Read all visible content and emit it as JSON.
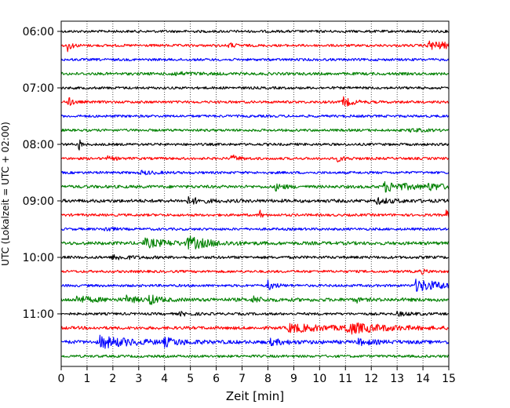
{
  "chart_data": {
    "type": "line",
    "chart_kind": "helicorder (seismogram drum plot)",
    "xlabel": "Zeit  [min]",
    "ylabel": "UTC (Lokalzeit = UTC + 02:00)",
    "xlim": [
      0,
      15
    ],
    "x_ticks": [
      0,
      1,
      2,
      3,
      4,
      5,
      6,
      7,
      8,
      9,
      10,
      11,
      12,
      13,
      14,
      15
    ],
    "x_tick_labels": [
      "0",
      "1",
      "2",
      "3",
      "4",
      "5",
      "6",
      "7",
      "8",
      "9",
      "10",
      "11",
      "12",
      "13",
      "14",
      "15"
    ],
    "y_tick_labels": [
      "06:00",
      "07:00",
      "08:00",
      "09:00",
      "10:00",
      "11:00"
    ],
    "y_tick_traces": [
      0,
      4,
      8,
      12,
      16,
      20
    ],
    "grid": "vertical dotted lines at each minute",
    "trace_minutes": 15,
    "trace_colors": [
      "#000000",
      "#ff0000",
      "#0000ff",
      "#008000"
    ],
    "traces": [
      {
        "start": "06:00",
        "color": "#000000",
        "noise": 1.0,
        "events": []
      },
      {
        "start": "06:15",
        "color": "#ff0000",
        "noise": 1.0,
        "events": [
          {
            "t": 0.25,
            "amp": 7,
            "dur": 0.15
          },
          {
            "t": 6.5,
            "amp": 3,
            "dur": 0.2
          },
          {
            "t": 14.2,
            "amp": 5,
            "dur": 1.2
          }
        ]
      },
      {
        "start": "06:30",
        "color": "#0000ff",
        "noise": 1.0,
        "events": []
      },
      {
        "start": "06:45",
        "color": "#008000",
        "noise": 1.1,
        "events": [
          {
            "t": 4.2,
            "amp": 2,
            "dur": 0.8
          }
        ]
      },
      {
        "start": "07:00",
        "color": "#000000",
        "noise": 1.0,
        "events": []
      },
      {
        "start": "07:15",
        "color": "#ff0000",
        "noise": 1.0,
        "events": [
          {
            "t": 0.25,
            "amp": 7,
            "dur": 0.15
          },
          {
            "t": 10.9,
            "amp": 6,
            "dur": 0.35
          }
        ]
      },
      {
        "start": "07:30",
        "color": "#0000ff",
        "noise": 1.0,
        "events": []
      },
      {
        "start": "07:45",
        "color": "#008000",
        "noise": 1.0,
        "events": [
          {
            "t": 13.5,
            "amp": 2,
            "dur": 0.5
          }
        ]
      },
      {
        "start": "08:00",
        "color": "#000000",
        "noise": 1.0,
        "events": [
          {
            "t": 0.7,
            "amp": 9,
            "dur": 0.06
          }
        ]
      },
      {
        "start": "08:15",
        "color": "#ff0000",
        "noise": 1.0,
        "events": [
          {
            "t": 1.8,
            "amp": 2,
            "dur": 0.3
          },
          {
            "t": 6.6,
            "amp": 4,
            "dur": 0.25
          },
          {
            "t": 10.7,
            "amp": 3,
            "dur": 0.3
          }
        ]
      },
      {
        "start": "08:30",
        "color": "#0000ff",
        "noise": 1.0,
        "events": [
          {
            "t": 3.1,
            "amp": 2,
            "dur": 0.5
          }
        ]
      },
      {
        "start": "08:45",
        "color": "#008000",
        "noise": 1.2,
        "events": [
          {
            "t": 8.3,
            "amp": 4,
            "dur": 0.3
          },
          {
            "t": 12.5,
            "amp": 6,
            "dur": 1.0
          },
          {
            "t": 14.2,
            "amp": 3,
            "dur": 0.8
          }
        ]
      },
      {
        "start": "09:00",
        "color": "#000000",
        "noise": 1.3,
        "events": [
          {
            "t": 4.9,
            "amp": 4,
            "dur": 0.5
          },
          {
            "t": 12.2,
            "amp": 3,
            "dur": 0.6
          }
        ]
      },
      {
        "start": "09:15",
        "color": "#ff0000",
        "noise": 1.0,
        "events": [
          {
            "t": 7.7,
            "amp": 7,
            "dur": 0.06
          },
          {
            "t": 14.9,
            "amp": 5,
            "dur": 0.2
          }
        ]
      },
      {
        "start": "09:30",
        "color": "#0000ff",
        "noise": 1.0,
        "events": [
          {
            "t": 1.7,
            "amp": 4,
            "dur": 0.2
          }
        ]
      },
      {
        "start": "09:45",
        "color": "#008000",
        "noise": 1.3,
        "events": [
          {
            "t": 3.2,
            "amp": 5,
            "dur": 1.0
          },
          {
            "t": 4.9,
            "amp": 7,
            "dur": 0.8
          }
        ]
      },
      {
        "start": "10:00",
        "color": "#000000",
        "noise": 1.1,
        "events": [
          {
            "t": 2.0,
            "amp": 3,
            "dur": 0.6
          }
        ]
      },
      {
        "start": "10:15",
        "color": "#ff0000",
        "noise": 1.0,
        "events": [
          {
            "t": 13.9,
            "amp": 3,
            "dur": 0.2
          }
        ]
      },
      {
        "start": "10:30",
        "color": "#0000ff",
        "noise": 1.0,
        "events": [
          {
            "t": 8.0,
            "amp": 6,
            "dur": 0.25
          },
          {
            "t": 13.7,
            "amp": 7,
            "dur": 1.3
          }
        ]
      },
      {
        "start": "10:45",
        "color": "#008000",
        "noise": 1.4,
        "events": [
          {
            "t": 0.6,
            "amp": 4,
            "dur": 0.6
          },
          {
            "t": 2.5,
            "amp": 4,
            "dur": 0.4
          },
          {
            "t": 3.4,
            "amp": 6,
            "dur": 0.3
          },
          {
            "t": 7.4,
            "amp": 4,
            "dur": 0.3
          },
          {
            "t": 11.4,
            "amp": 4,
            "dur": 0.1
          }
        ]
      },
      {
        "start": "11:00",
        "color": "#000000",
        "noise": 1.0,
        "events": [
          {
            "t": 4.6,
            "amp": 2,
            "dur": 0.4
          },
          {
            "t": 13.0,
            "amp": 2,
            "dur": 0.6
          }
        ]
      },
      {
        "start": "11:15",
        "color": "#ff0000",
        "noise": 1.2,
        "events": [
          {
            "t": 8.8,
            "amp": 5,
            "dur": 1.5
          },
          {
            "t": 11.0,
            "amp": 6,
            "dur": 1.4
          }
        ]
      },
      {
        "start": "11:30",
        "color": "#0000ff",
        "noise": 1.4,
        "events": [
          {
            "t": 1.5,
            "amp": 7,
            "dur": 1.2
          },
          {
            "t": 4.0,
            "amp": 4,
            "dur": 0.6
          },
          {
            "t": 8.1,
            "amp": 3,
            "dur": 0.6
          },
          {
            "t": 11.5,
            "amp": 3,
            "dur": 0.6
          }
        ]
      },
      {
        "start": "11:45",
        "color": "#008000",
        "noise": 1.0,
        "events": []
      }
    ]
  }
}
